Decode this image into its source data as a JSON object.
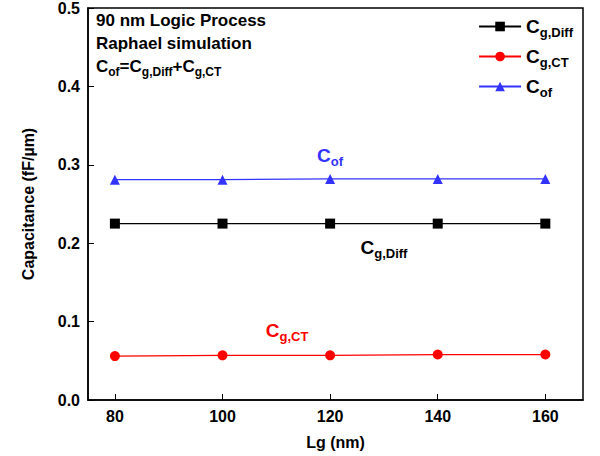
{
  "chart_data": {
    "type": "line",
    "x_label": "Lg (nm)",
    "y_label": "Capacitance (fF/µm)",
    "notes": [
      "90 nm Logic Process",
      "Raphael simulation",
      "Cof=Cg,Diff+Cg,CT"
    ],
    "x": [
      80,
      100,
      120,
      140,
      160
    ],
    "series": [
      {
        "name": "Cg,Diff",
        "color": "#000000",
        "marker": "square",
        "values": [
          0.225,
          0.225,
          0.225,
          0.225,
          0.225
        ]
      },
      {
        "name": "Cg,CT",
        "color": "#ff0000",
        "marker": "circle",
        "values": [
          0.056,
          0.057,
          0.057,
          0.058,
          0.058
        ]
      },
      {
        "name": "Cof",
        "color": "#3333ff",
        "marker": "triangle",
        "values": [
          0.281,
          0.281,
          0.282,
          0.282,
          0.282
        ]
      }
    ],
    "annotations": [
      {
        "text": "Cof",
        "x": 120,
        "y": 0.312,
        "color": "#3333ff"
      },
      {
        "text": "Cg,Diff",
        "x": 130,
        "y": 0.194,
        "color": "#000000"
      },
      {
        "text": "Cg,CT",
        "x": 112,
        "y": 0.089,
        "color": "#ff0000"
      }
    ],
    "xlim": [
      75,
      167
    ],
    "xticks": [
      80,
      100,
      120,
      140,
      160
    ],
    "ylim": [
      0,
      0.5
    ],
    "yticks": [
      {
        "value": 0,
        "label": "0.0"
      },
      0.1,
      0.2,
      0.3,
      0.4,
      0.5
    ],
    "legend": "upper right",
    "grid": false
  }
}
